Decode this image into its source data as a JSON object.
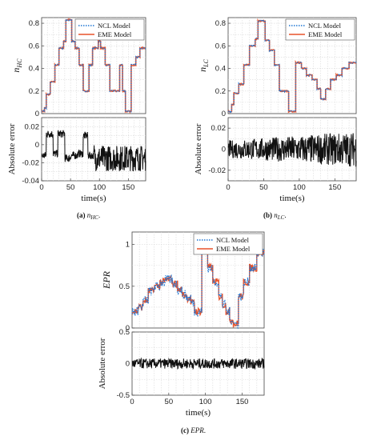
{
  "figure": {
    "captions": [
      {
        "tag": "(a)",
        "text": "n",
        "sub": "HC",
        "end": "."
      },
      {
        "tag": "(b)",
        "text": "n",
        "sub": "LC",
        "end": "."
      },
      {
        "tag": "(c)",
        "text": "EPR",
        "sub": "",
        "end": "."
      }
    ]
  },
  "colors": {
    "ncl": "#1f77d4",
    "eme": "#e8522a",
    "error": "#111111"
  },
  "chart_data": [
    {
      "id": "a-top",
      "type": "line",
      "ylabel_main": "n",
      "ylabel_sub": "HC",
      "xlim": [
        0,
        180
      ],
      "ylim": [
        0,
        0.85
      ],
      "yticks": [
        0,
        0.2,
        0.4,
        0.6,
        0.8
      ],
      "grid": true,
      "legend_placement": "top-right",
      "series": [
        {
          "name": "NCL Model",
          "style": "dotted"
        },
        {
          "name": "EME Model",
          "style": "solid"
        }
      ],
      "steps": [
        [
          0,
          0.02
        ],
        [
          5,
          0.05
        ],
        [
          8,
          0.17
        ],
        [
          15,
          0.28
        ],
        [
          23,
          0.43
        ],
        [
          30,
          0.58
        ],
        [
          38,
          0.64
        ],
        [
          42,
          0.83
        ],
        [
          52,
          0.64
        ],
        [
          58,
          0.58
        ],
        [
          65,
          0.43
        ],
        [
          72,
          0.2
        ],
        [
          82,
          0.43
        ],
        [
          88,
          0.58
        ],
        [
          98,
          0.64
        ],
        [
          102,
          0.58
        ],
        [
          110,
          0.43
        ],
        [
          118,
          0.2
        ],
        [
          128,
          0.2
        ],
        [
          135,
          0.43
        ],
        [
          140,
          0.2
        ],
        [
          145,
          0.02
        ],
        [
          152,
          0.02
        ],
        [
          155,
          0.43
        ],
        [
          163,
          0.5
        ],
        [
          170,
          0.58
        ],
        [
          180,
          0.58
        ]
      ]
    },
    {
      "id": "a-bottom",
      "type": "line",
      "xlabel": "time(s)",
      "ylabel": "Absolute error",
      "xlim": [
        0,
        180
      ],
      "ylim": [
        -0.04,
        0.03
      ],
      "xticks": [
        0,
        50,
        100,
        150
      ],
      "yticks": [
        -0.04,
        -0.02,
        0,
        0.02
      ],
      "grid": true,
      "segments": [
        [
          0,
          -0.012
        ],
        [
          8,
          0.012
        ],
        [
          20,
          -0.01
        ],
        [
          28,
          0.012
        ],
        [
          40,
          -0.015
        ],
        [
          50,
          -0.012
        ],
        [
          62,
          -0.01
        ],
        [
          72,
          0.01
        ],
        [
          80,
          -0.012
        ],
        [
          92,
          -0.015
        ],
        [
          180,
          -0.005
        ]
      ],
      "noise": 0.012
    },
    {
      "id": "b-top",
      "type": "line",
      "ylabel_main": "n",
      "ylabel_sub": "LC",
      "xlim": [
        0,
        180
      ],
      "ylim": [
        0,
        0.85
      ],
      "yticks": [
        0,
        0.2,
        0.4,
        0.6,
        0.8
      ],
      "grid": true,
      "legend_placement": "top-right",
      "series": [
        {
          "name": "NCL Model",
          "style": "dotted"
        },
        {
          "name": "EME Model",
          "style": "solid"
        }
      ],
      "steps": [
        [
          0,
          0.02
        ],
        [
          5,
          0.08
        ],
        [
          8,
          0.18
        ],
        [
          15,
          0.26
        ],
        [
          22,
          0.43
        ],
        [
          30,
          0.6
        ],
        [
          38,
          0.66
        ],
        [
          42,
          0.82
        ],
        [
          52,
          0.65
        ],
        [
          58,
          0.56
        ],
        [
          65,
          0.43
        ],
        [
          72,
          0.2
        ],
        [
          80,
          0.2
        ],
        [
          85,
          0.02
        ],
        [
          92,
          0.02
        ],
        [
          95,
          0.45
        ],
        [
          103,
          0.4
        ],
        [
          110,
          0.34
        ],
        [
          118,
          0.3
        ],
        [
          125,
          0.22
        ],
        [
          130,
          0.13
        ],
        [
          137,
          0.22
        ],
        [
          144,
          0.3
        ],
        [
          152,
          0.34
        ],
        [
          160,
          0.4
        ],
        [
          170,
          0.45
        ],
        [
          180,
          0.45
        ]
      ]
    },
    {
      "id": "b-bottom",
      "type": "line",
      "xlabel": "time(s)",
      "ylabel": "Absolute error",
      "xlim": [
        0,
        180
      ],
      "ylim": [
        -0.03,
        0.03
      ],
      "xticks": [
        0,
        50,
        100,
        150
      ],
      "yticks": [
        -0.02,
        0,
        0.02
      ],
      "grid": true,
      "segments": [
        [
          0,
          0
        ],
        [
          180,
          0
        ]
      ],
      "noise": 0.014
    },
    {
      "id": "c-top",
      "type": "line",
      "ylabel": "EPR",
      "xlim": [
        0,
        180
      ],
      "ylim": [
        0,
        1.15
      ],
      "yticks": [
        0,
        0.5,
        1
      ],
      "grid": true,
      "legend_placement": "top-right",
      "series": [
        {
          "name": "NCL Model",
          "style": "dotted"
        },
        {
          "name": "EME Model",
          "style": "solid"
        }
      ],
      "steps": [
        [
          0,
          0.2
        ],
        [
          8,
          0.25
        ],
        [
          15,
          0.33
        ],
        [
          22,
          0.44
        ],
        [
          30,
          0.5
        ],
        [
          38,
          0.55
        ],
        [
          45,
          0.58
        ],
        [
          55,
          0.53
        ],
        [
          62,
          0.46
        ],
        [
          68,
          0.4
        ],
        [
          74,
          0.36
        ],
        [
          80,
          0.3
        ],
        [
          85,
          0.2
        ],
        [
          92,
          0.2
        ],
        [
          95,
          0.95
        ],
        [
          103,
          0.72
        ],
        [
          110,
          0.55
        ],
        [
          118,
          0.38
        ],
        [
          123,
          0.28
        ],
        [
          128,
          0.2
        ],
        [
          133,
          0.1
        ],
        [
          138,
          0.05
        ],
        [
          145,
          0.38
        ],
        [
          152,
          0.55
        ],
        [
          160,
          0.72
        ],
        [
          170,
          0.9
        ],
        [
          180,
          0.95
        ]
      ]
    },
    {
      "id": "c-bottom",
      "type": "line",
      "xlabel": "time(s)",
      "ylabel": "Absolute error",
      "xlim": [
        0,
        180
      ],
      "ylim": [
        -0.5,
        0.5
      ],
      "xticks": [
        0,
        50,
        100,
        150
      ],
      "yticks": [
        -0.5,
        0,
        0.5
      ],
      "grid": true,
      "segments": [
        [
          0,
          0
        ],
        [
          180,
          0
        ]
      ],
      "noise": 0.08
    }
  ]
}
